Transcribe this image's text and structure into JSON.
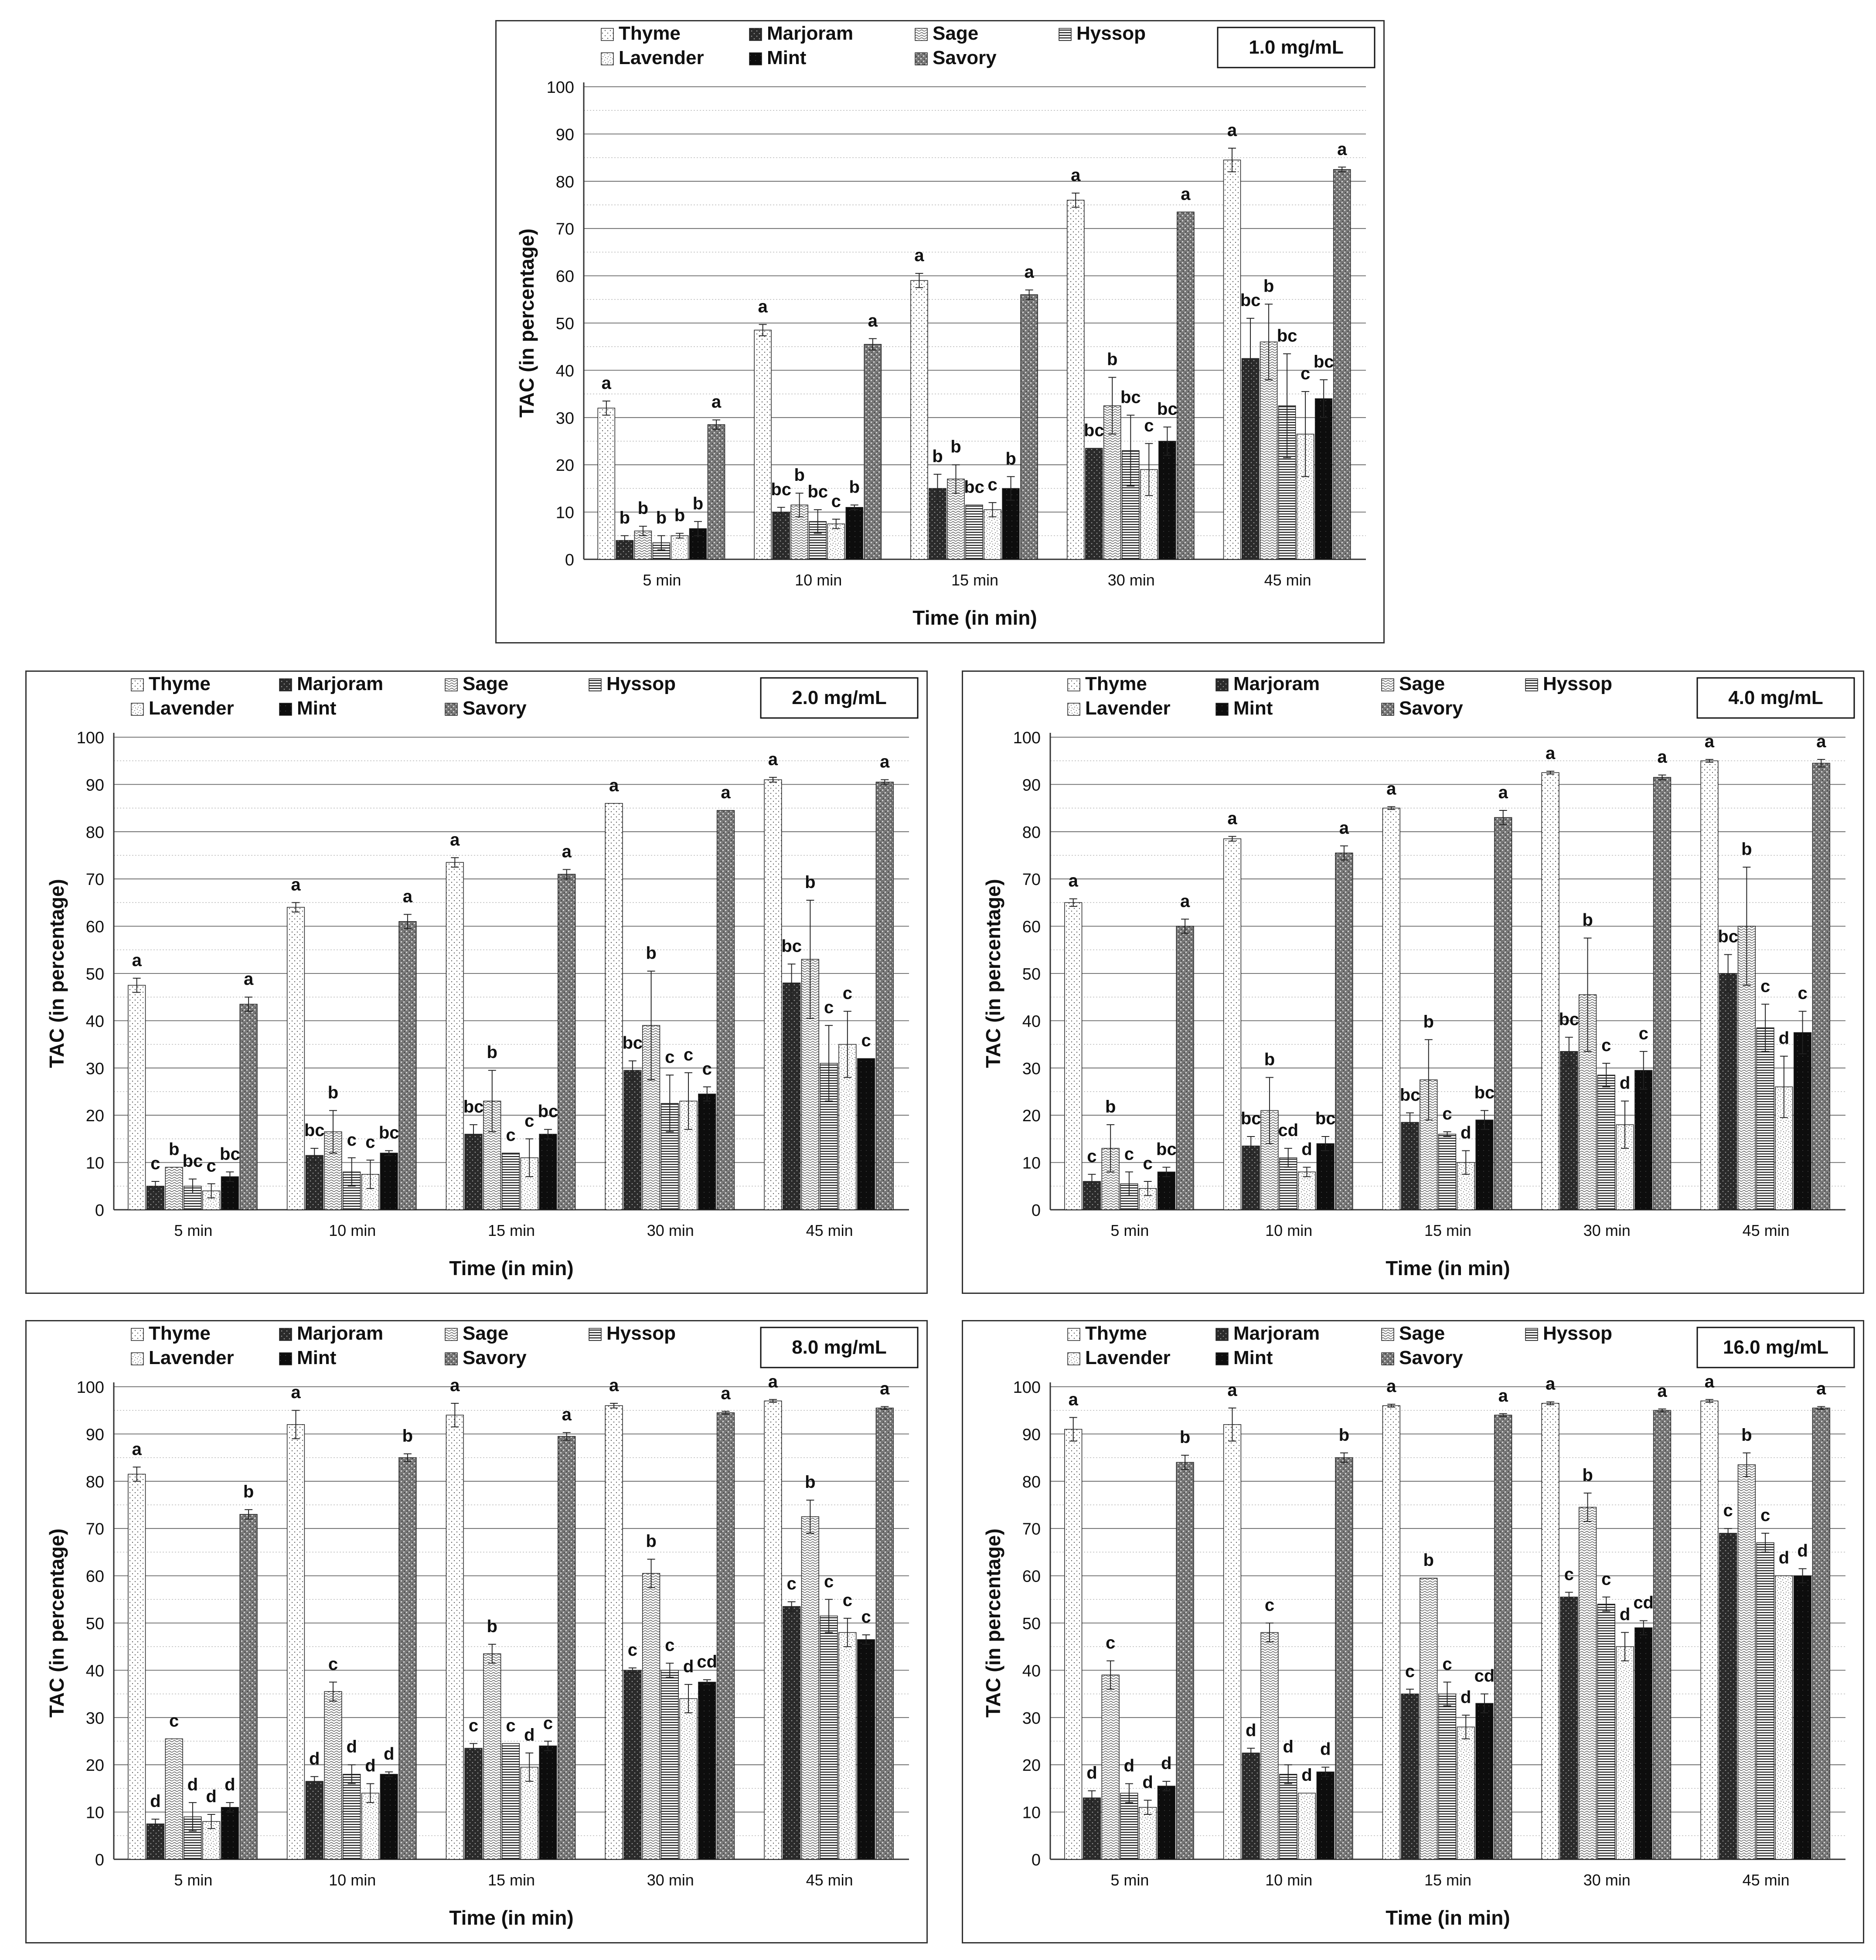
{
  "legend_labels": [
    "Thyme",
    "Marjoram",
    "Sage",
    "Hyssop",
    "Lavender",
    "Mint",
    "Savory"
  ],
  "chart_data": [
    {
      "type": "bar",
      "title": "1.0 mg/mL",
      "xlabel": "Time (in min)",
      "ylabel": "TAC (in percentage)",
      "ylim": [
        0,
        100
      ],
      "yticks": [
        0,
        10,
        20,
        30,
        40,
        50,
        60,
        70,
        80,
        90,
        100
      ],
      "categories": [
        "5 min",
        "10 min",
        "15 min",
        "30 min",
        "45 min"
      ],
      "series": [
        {
          "name": "Thyme",
          "values": [
            32,
            48.5,
            59,
            76,
            84.5
          ],
          "errors": [
            1.5,
            1.2,
            1.5,
            1.5,
            2.5
          ]
        },
        {
          "name": "Marjoram",
          "values": [
            4,
            10,
            15,
            23.5,
            42.5
          ],
          "errors": [
            1,
            1,
            3,
            0,
            8.5
          ]
        },
        {
          "name": "Sage",
          "values": [
            6,
            11.5,
            17,
            32.5,
            46
          ],
          "errors": [
            1,
            2.5,
            3,
            6,
            8
          ]
        },
        {
          "name": "Hyssop",
          "values": [
            3.5,
            8,
            11.5,
            23,
            32.5
          ],
          "errors": [
            1.5,
            2.5,
            0,
            7.5,
            11
          ]
        },
        {
          "name": "Lavender",
          "values": [
            5,
            7.5,
            10.5,
            19,
            26.5
          ],
          "errors": [
            0.5,
            1,
            1.5,
            5.5,
            9
          ]
        },
        {
          "name": "Mint",
          "values": [
            6.5,
            11,
            15,
            25,
            34
          ],
          "errors": [
            1.5,
            0.5,
            2.5,
            3,
            4
          ]
        },
        {
          "name": "Savory",
          "values": [
            28.5,
            45.5,
            56,
            73.5,
            82.5
          ],
          "errors": [
            1,
            1.2,
            1,
            0,
            0.5
          ]
        }
      ],
      "significance_labels": [
        [
          "a",
          "b",
          "b",
          "b",
          "b",
          "b",
          "a"
        ],
        [
          "a",
          "bc",
          "b",
          "bc",
          "c",
          "b",
          "a"
        ],
        [
          "a",
          "b",
          "b",
          "bc",
          "c",
          "b",
          "a"
        ],
        [
          "a",
          "bc",
          "b",
          "bc",
          "c",
          "bc",
          "a"
        ],
        [
          "a",
          "bc",
          "b",
          "bc",
          "c",
          "bc",
          "a"
        ]
      ]
    },
    {
      "type": "bar",
      "title": "2.0 mg/mL",
      "xlabel": "Time (in min)",
      "ylabel": "TAC (in percentage)",
      "ylim": [
        0,
        100
      ],
      "yticks": [
        0,
        10,
        20,
        30,
        40,
        50,
        60,
        70,
        80,
        90,
        100
      ],
      "categories": [
        "5 min",
        "10 min",
        "15 min",
        "30 min",
        "45 min"
      ],
      "series": [
        {
          "name": "Thyme",
          "values": [
            47.5,
            64,
            73.5,
            86,
            91
          ],
          "errors": [
            1.5,
            1,
            1,
            0,
            0.5
          ]
        },
        {
          "name": "Marjoram",
          "values": [
            5,
            11.5,
            16,
            29.5,
            48
          ],
          "errors": [
            1,
            1.5,
            2,
            2,
            4
          ]
        },
        {
          "name": "Sage",
          "values": [
            9,
            16.5,
            23,
            39,
            53
          ],
          "errors": [
            0,
            4.5,
            6.5,
            11.5,
            12.5
          ]
        },
        {
          "name": "Hyssop",
          "values": [
            5,
            8,
            12,
            22.5,
            31
          ],
          "errors": [
            1.5,
            3,
            0,
            6,
            8
          ]
        },
        {
          "name": "Lavender",
          "values": [
            4,
            7.5,
            11,
            23,
            35
          ],
          "errors": [
            1.5,
            3,
            4,
            6,
            7
          ]
        },
        {
          "name": "Mint",
          "values": [
            7,
            12,
            16,
            24.5,
            32
          ],
          "errors": [
            1,
            0.5,
            1,
            1.5,
            0
          ]
        },
        {
          "name": "Savory",
          "values": [
            43.5,
            61,
            71,
            84.5,
            90.5
          ],
          "errors": [
            1.5,
            1.5,
            1,
            0,
            0.5
          ]
        }
      ],
      "significance_labels": [
        [
          "a",
          "c",
          "b",
          "bc",
          "c",
          "bc",
          "a"
        ],
        [
          "a",
          "bc",
          "b",
          "c",
          "c",
          "bc",
          "a"
        ],
        [
          "a",
          "bc",
          "b",
          "c",
          "c",
          "bc",
          "a"
        ],
        [
          "a",
          "bc",
          "b",
          "c",
          "c",
          "c",
          "a"
        ],
        [
          "a",
          "bc",
          "b",
          "c",
          "c",
          "c",
          "a"
        ]
      ]
    },
    {
      "type": "bar",
      "title": "4.0 mg/mL",
      "xlabel": "Time (in min)",
      "ylabel": "TAC (in percentage)",
      "ylim": [
        0,
        100
      ],
      "yticks": [
        0,
        10,
        20,
        30,
        40,
        50,
        60,
        70,
        80,
        90,
        100
      ],
      "categories": [
        "5 min",
        "10 min",
        "15 min",
        "30 min",
        "45 min"
      ],
      "series": [
        {
          "name": "Thyme",
          "values": [
            65,
            78.5,
            85,
            92.5,
            95
          ],
          "errors": [
            0.8,
            0.5,
            0.3,
            0.3,
            0.3
          ]
        },
        {
          "name": "Marjoram",
          "values": [
            6,
            13.5,
            18.5,
            33.5,
            50
          ],
          "errors": [
            1.5,
            2,
            2,
            3,
            4
          ]
        },
        {
          "name": "Sage",
          "values": [
            13,
            21,
            27.5,
            45.5,
            60
          ],
          "errors": [
            5,
            7,
            8.5,
            12,
            12.5
          ]
        },
        {
          "name": "Hyssop",
          "values": [
            5.5,
            11,
            16,
            28.5,
            38.5
          ],
          "errors": [
            2.5,
            2,
            0.5,
            2.5,
            5
          ]
        },
        {
          "name": "Lavender",
          "values": [
            4.5,
            8,
            10,
            18,
            26
          ],
          "errors": [
            1.5,
            1,
            2.5,
            5,
            6.5
          ]
        },
        {
          "name": "Mint",
          "values": [
            8,
            14,
            19,
            29.5,
            37.5
          ],
          "errors": [
            1,
            1.5,
            2,
            4,
            4.5
          ]
        },
        {
          "name": "Savory",
          "values": [
            60,
            75.5,
            83,
            91.5,
            94.5
          ],
          "errors": [
            1.5,
            1.5,
            1.5,
            0.5,
            0.8
          ]
        }
      ],
      "significance_labels": [
        [
          "a",
          "c",
          "b",
          "c",
          "c",
          "bc",
          "a"
        ],
        [
          "a",
          "bc",
          "b",
          "cd",
          "d",
          "bc",
          "a"
        ],
        [
          "a",
          "bc",
          "b",
          "c",
          "d",
          "bc",
          "a"
        ],
        [
          "a",
          "bc",
          "b",
          "c",
          "d",
          "c",
          "a"
        ],
        [
          "a",
          "bc",
          "b",
          "c",
          "d",
          "c",
          "a"
        ]
      ]
    },
    {
      "type": "bar",
      "title": "8.0 mg/mL",
      "xlabel": "Time (in min)",
      "ylabel": "TAC (in percentage)",
      "ylim": [
        0,
        100
      ],
      "yticks": [
        0,
        10,
        20,
        30,
        40,
        50,
        60,
        70,
        80,
        90,
        100
      ],
      "categories": [
        "5 min",
        "10 min",
        "15 min",
        "30 min",
        "45 min"
      ],
      "series": [
        {
          "name": "Thyme",
          "values": [
            81.5,
            92,
            94,
            96,
            97
          ],
          "errors": [
            1.5,
            3,
            2.5,
            0.5,
            0.3
          ]
        },
        {
          "name": "Marjoram",
          "values": [
            7.5,
            16.5,
            23.5,
            40,
            53.5
          ],
          "errors": [
            1,
            1,
            1,
            0.5,
            1
          ]
        },
        {
          "name": "Sage",
          "values": [
            25.5,
            35.5,
            43.5,
            60.5,
            72.5
          ],
          "errors": [
            0,
            2,
            2,
            3,
            3.5
          ]
        },
        {
          "name": "Hyssop",
          "values": [
            9,
            18,
            24.5,
            40,
            51.5
          ],
          "errors": [
            3,
            2,
            0,
            1.5,
            3.5
          ]
        },
        {
          "name": "Lavender",
          "values": [
            8,
            14,
            19.5,
            34,
            48
          ],
          "errors": [
            1.5,
            2,
            3,
            3,
            3
          ]
        },
        {
          "name": "Mint",
          "values": [
            11,
            18,
            24,
            37.5,
            46.5
          ],
          "errors": [
            1,
            0.5,
            1,
            0.5,
            1
          ]
        },
        {
          "name": "Savory",
          "values": [
            73,
            85,
            89.5,
            94.5,
            95.5
          ],
          "errors": [
            1,
            0.8,
            0.8,
            0.3,
            0.3
          ]
        }
      ],
      "significance_labels": [
        [
          "a",
          "d",
          "c",
          "d",
          "d",
          "d",
          "b"
        ],
        [
          "a",
          "d",
          "c",
          "d",
          "d",
          "d",
          "b"
        ],
        [
          "a",
          "c",
          "b",
          "c",
          "d",
          "c",
          "a"
        ],
        [
          "a",
          "c",
          "b",
          "c",
          "d",
          "cd",
          "a"
        ],
        [
          "a",
          "c",
          "b",
          "c",
          "c",
          "c",
          "a"
        ]
      ]
    },
    {
      "type": "bar",
      "title": "16.0 mg/mL",
      "xlabel": "Time (in min)",
      "ylabel": "TAC (in percentage)",
      "ylim": [
        0,
        100
      ],
      "yticks": [
        0,
        10,
        20,
        30,
        40,
        50,
        60,
        70,
        80,
        90,
        100
      ],
      "categories": [
        "5 min",
        "10 min",
        "15 min",
        "30 min",
        "45 min"
      ],
      "series": [
        {
          "name": "Thyme",
          "values": [
            91,
            92,
            96,
            96.5,
            97
          ],
          "errors": [
            2.5,
            3.5,
            0.3,
            0.3,
            0.3
          ]
        },
        {
          "name": "Marjoram",
          "values": [
            13,
            22.5,
            35,
            55.5,
            69
          ],
          "errors": [
            1.5,
            1,
            1,
            1,
            1
          ]
        },
        {
          "name": "Sage",
          "values": [
            39,
            48,
            59.5,
            74.5,
            83.5
          ],
          "errors": [
            3,
            2,
            0,
            3,
            2.5
          ]
        },
        {
          "name": "Hyssop",
          "values": [
            14,
            18,
            35,
            54,
            67
          ],
          "errors": [
            2,
            2,
            2.5,
            1.5,
            2
          ]
        },
        {
          "name": "Lavender",
          "values": [
            11,
            14,
            28,
            45,
            60
          ],
          "errors": [
            1.5,
            0,
            2.5,
            3,
            0
          ]
        },
        {
          "name": "Mint",
          "values": [
            15.5,
            18.5,
            33,
            49,
            60
          ],
          "errors": [
            1,
            1,
            2,
            1.5,
            1.5
          ]
        },
        {
          "name": "Savory",
          "values": [
            84,
            85,
            94,
            95,
            95.5
          ],
          "errors": [
            1.5,
            1,
            0.3,
            0.3,
            0.3
          ]
        }
      ],
      "significance_labels": [
        [
          "a",
          "d",
          "c",
          "d",
          "d",
          "d",
          "b"
        ],
        [
          "a",
          "d",
          "c",
          "d",
          "d",
          "d",
          "b"
        ],
        [
          "a",
          "c",
          "b",
          "c",
          "d",
          "cd",
          "a"
        ],
        [
          "a",
          "c",
          "b",
          "c",
          "d",
          "cd",
          "a"
        ],
        [
          "a",
          "c",
          "b",
          "c",
          "d",
          "d",
          "a"
        ]
      ]
    }
  ]
}
